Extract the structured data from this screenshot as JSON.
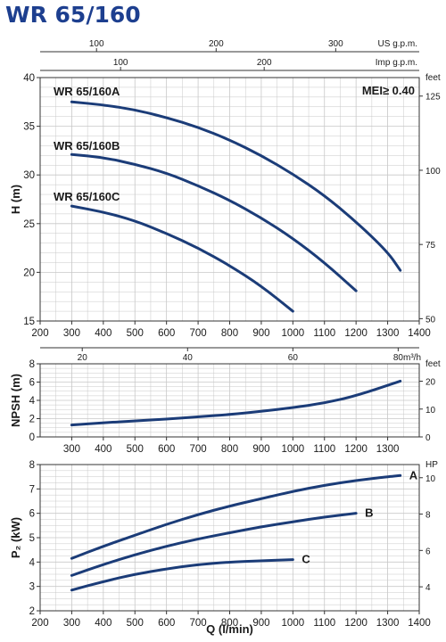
{
  "title": "WR 65/160",
  "colors": {
    "curve": "#1b3c78",
    "title": "#1d3f8f",
    "grid": "#c8c8c8",
    "frame": "#333333"
  },
  "chart_data": [
    {
      "type": "line",
      "name": "head",
      "xlim": [
        200,
        1400
      ],
      "ylim": [
        15,
        40
      ],
      "ylabel": "H (m)",
      "xticks": [
        200,
        300,
        400,
        500,
        600,
        700,
        800,
        900,
        1000,
        1100,
        1200,
        1300,
        1400
      ],
      "yticks": [
        15,
        20,
        25,
        30,
        35,
        40
      ],
      "right_axis": {
        "unit": "feet",
        "ticks": [
          {
            "label": "50",
            "value": 15.24
          },
          {
            "label": "75",
            "value": 22.86
          },
          {
            "label": "100",
            "value": 30.48
          },
          {
            "label": "125",
            "value": 38.1
          }
        ]
      },
      "top_axes": [
        {
          "unit": "US g.p.m.",
          "ticks": [
            {
              "label": "100",
              "value": 378.5
            },
            {
              "label": "200",
              "value": 757.1
            },
            {
              "label": "300",
              "value": 1135.6
            }
          ]
        },
        {
          "unit": "Imp g.p.m.",
          "ticks": [
            {
              "label": "100",
              "value": 454.6
            },
            {
              "label": "200",
              "value": 909.2
            }
          ]
        }
      ],
      "bottom_axis": {
        "unit": "m³/h",
        "ticks": [
          {
            "label": "20",
            "value": 333.3
          },
          {
            "label": "40",
            "value": 666.7
          },
          {
            "label": "60",
            "value": 1000
          },
          {
            "label": "80",
            "value": 1333.3
          }
        ]
      },
      "annotation": "MEI≥ 0.40",
      "series": [
        {
          "name": "WR 65/160A",
          "x": [
            300,
            400,
            500,
            600,
            700,
            800,
            900,
            1000,
            1100,
            1200,
            1300,
            1340
          ],
          "y": [
            37.5,
            37.2,
            36.7,
            35.9,
            34.9,
            33.6,
            32.0,
            30.1,
            27.9,
            25.2,
            22.1,
            20.2
          ]
        },
        {
          "name": "WR 65/160B",
          "x": [
            300,
            400,
            500,
            600,
            700,
            800,
            900,
            1000,
            1100,
            1200
          ],
          "y": [
            32.1,
            31.8,
            31.1,
            30.2,
            28.9,
            27.4,
            25.6,
            23.5,
            21.0,
            18.1
          ]
        },
        {
          "name": "WR 65/160C",
          "x": [
            300,
            400,
            500,
            600,
            700,
            800,
            900,
            1000
          ],
          "y": [
            26.8,
            26.2,
            25.3,
            24.0,
            22.5,
            20.7,
            18.6,
            16.0
          ]
        }
      ]
    },
    {
      "type": "line",
      "name": "npsh",
      "xlim": [
        200,
        1400
      ],
      "ylim": [
        0,
        8
      ],
      "ylabel": "NPSH (m)",
      "xticks": [
        300,
        400,
        500,
        600,
        700,
        800,
        900,
        1000,
        1100,
        1200,
        1300
      ],
      "yticks": [
        0,
        2,
        4,
        6,
        8
      ],
      "right_axis": {
        "unit": "feet",
        "ticks": [
          {
            "label": "0",
            "value": 0
          },
          {
            "label": "10",
            "value": 3.048
          },
          {
            "label": "20",
            "value": 6.096
          }
        ]
      },
      "series": [
        {
          "x": [
            300,
            400,
            500,
            600,
            700,
            800,
            900,
            1000,
            1100,
            1200,
            1340
          ],
          "y": [
            1.3,
            1.55,
            1.75,
            1.95,
            2.2,
            2.45,
            2.8,
            3.2,
            3.7,
            4.5,
            6.1
          ]
        }
      ]
    },
    {
      "type": "line",
      "name": "power",
      "xlim": [
        200,
        1400
      ],
      "ylim": [
        2,
        8
      ],
      "ylabel": "P₂ (kW)",
      "xlabel": "Q (l/min)",
      "xticks": [
        200,
        300,
        400,
        500,
        600,
        700,
        800,
        900,
        1000,
        1100,
        1200,
        1300,
        1400
      ],
      "yticks": [
        2,
        3,
        4,
        5,
        6,
        7,
        8
      ],
      "right_axis": {
        "unit": "HP",
        "ticks": [
          {
            "label": "4",
            "value": 2.984
          },
          {
            "label": "6",
            "value": 4.476
          },
          {
            "label": "8",
            "value": 5.968
          },
          {
            "label": "10",
            "value": 7.46
          }
        ]
      },
      "series": [
        {
          "name": "A",
          "x": [
            300,
            400,
            500,
            600,
            700,
            800,
            900,
            1000,
            1100,
            1200,
            1300,
            1340
          ],
          "y": [
            4.15,
            4.65,
            5.1,
            5.55,
            5.95,
            6.3,
            6.6,
            6.9,
            7.15,
            7.35,
            7.5,
            7.55
          ]
        },
        {
          "name": "B",
          "x": [
            300,
            400,
            500,
            600,
            700,
            800,
            900,
            1000,
            1100,
            1200
          ],
          "y": [
            3.45,
            3.9,
            4.3,
            4.65,
            4.95,
            5.2,
            5.45,
            5.65,
            5.85,
            6.0
          ]
        },
        {
          "name": "C",
          "x": [
            300,
            400,
            500,
            600,
            700,
            800,
            900,
            1000
          ],
          "y": [
            2.85,
            3.2,
            3.5,
            3.72,
            3.9,
            4.0,
            4.05,
            4.1
          ]
        }
      ]
    }
  ]
}
